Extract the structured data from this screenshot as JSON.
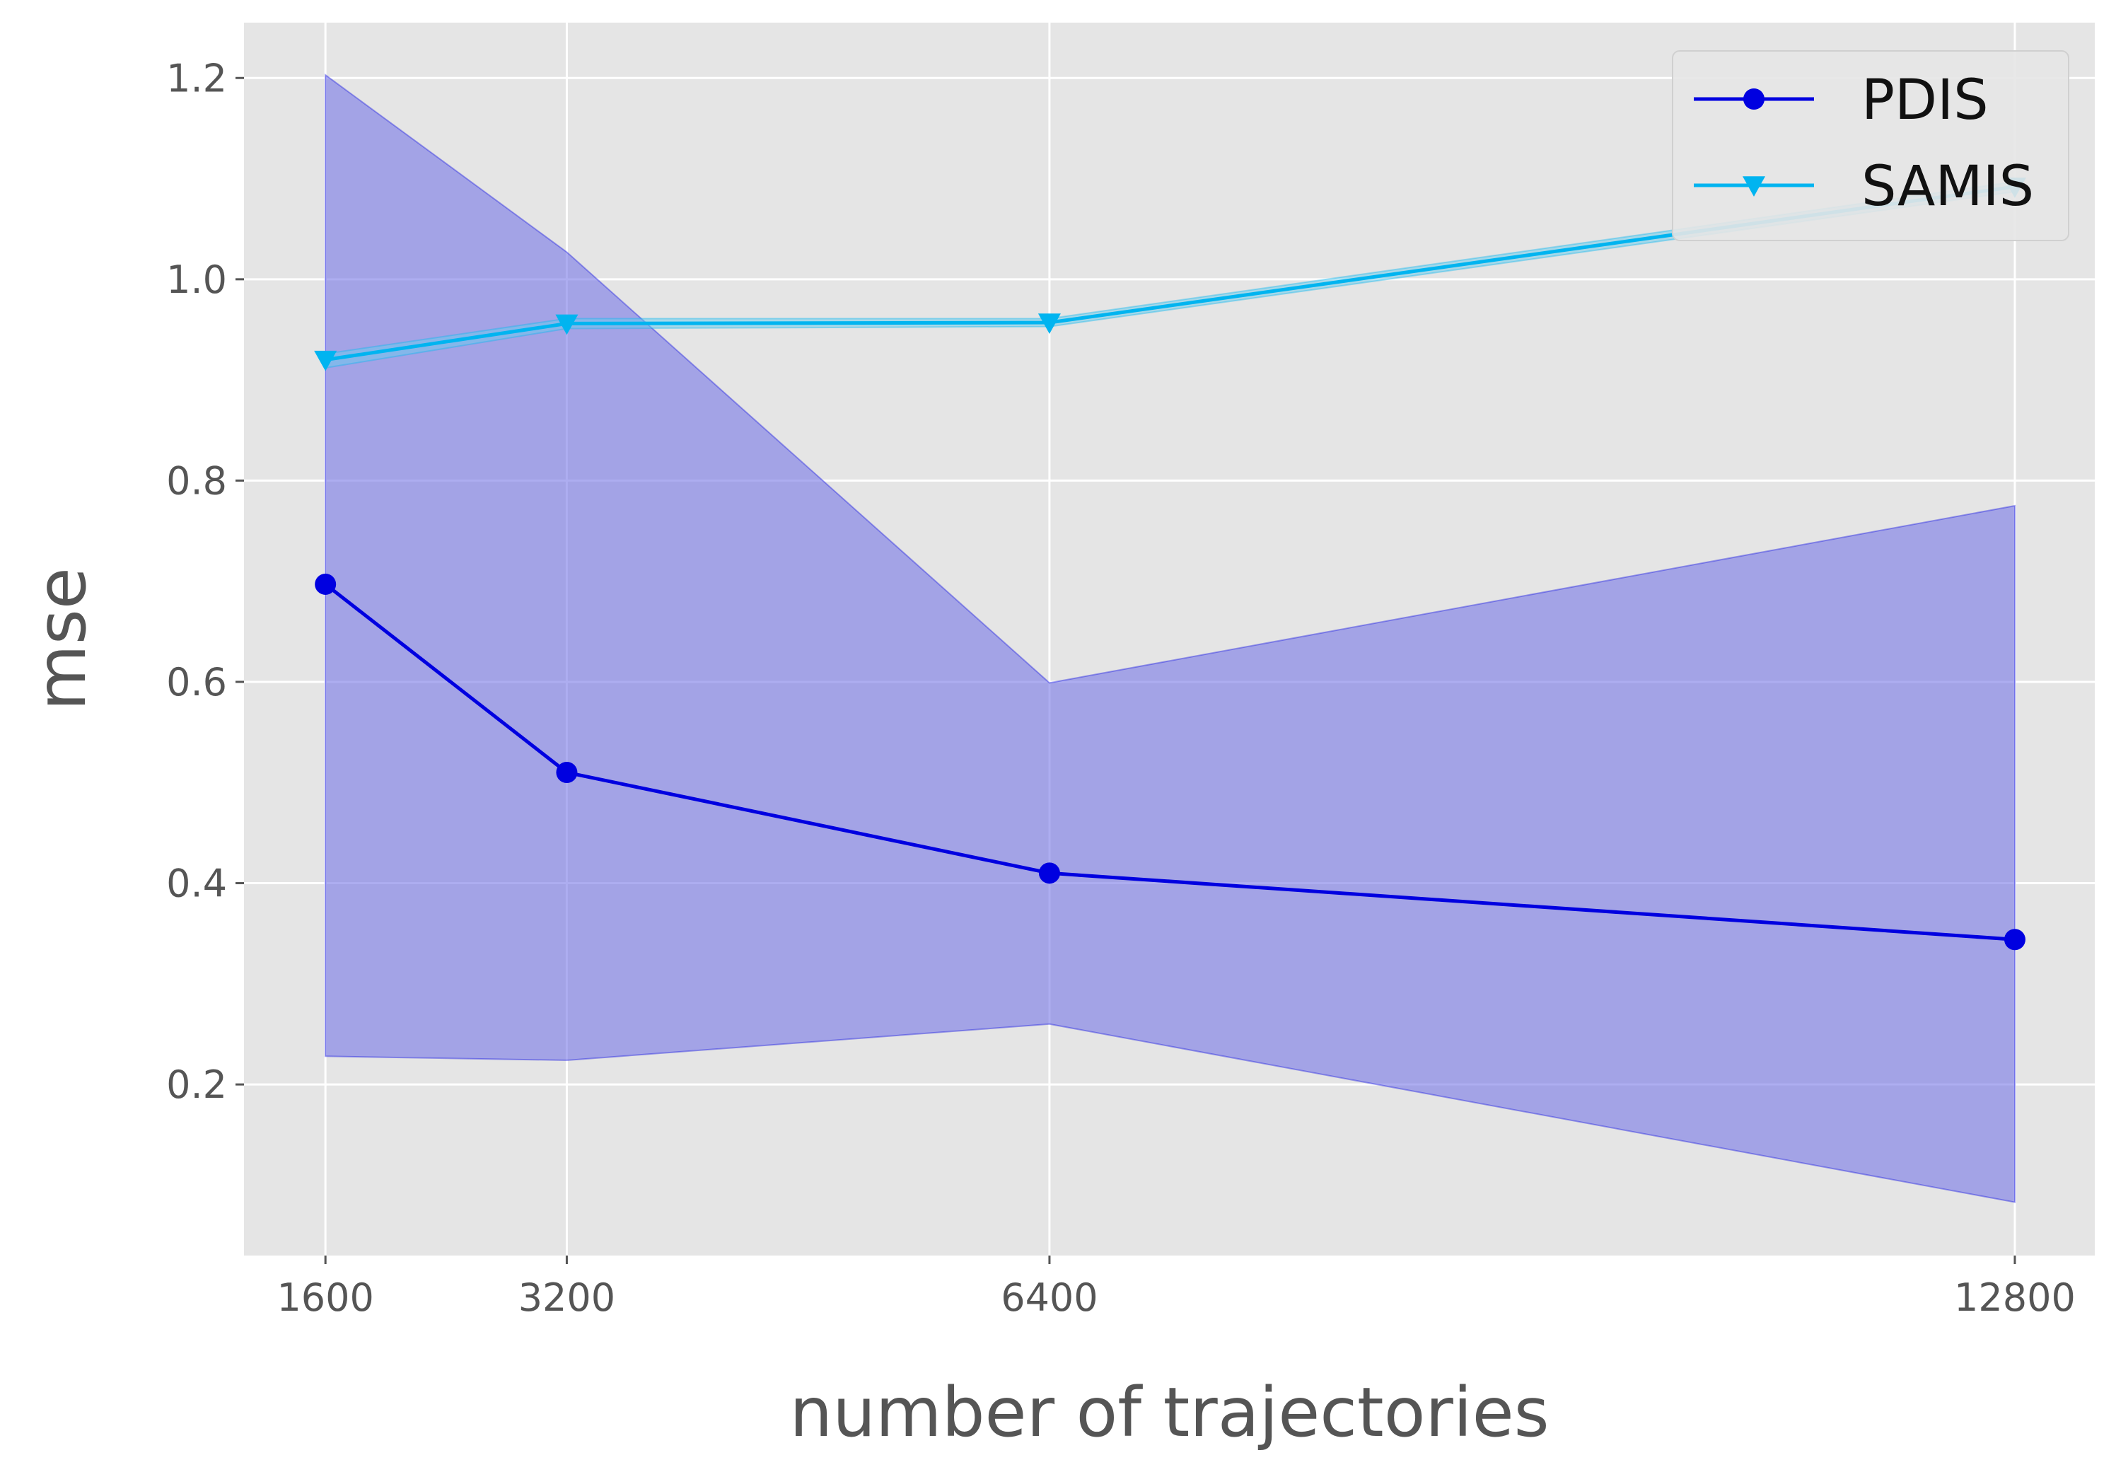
{
  "chart_data": {
    "type": "line",
    "xlabel": "number of trajectories",
    "ylabel": "mse",
    "x": [
      1600,
      3200,
      6400,
      12800
    ],
    "x_tick_labels": [
      "1600",
      "3200",
      "6400",
      "12800"
    ],
    "y_ticks": [
      0.2,
      0.4,
      0.6,
      0.8,
      1.0,
      1.2
    ],
    "y_tick_labels": [
      "0.2",
      "0.4",
      "0.6",
      "0.8",
      "1.0",
      "1.2"
    ],
    "xlim": [
      1060,
      13330
    ],
    "ylim": [
      0.03,
      1.255
    ],
    "grid": true,
    "legend_position": "top-right",
    "series": [
      {
        "name": "PDIS",
        "color": "#0000e0",
        "marker": "circle",
        "values": [
          0.697,
          0.51,
          0.41,
          0.344
        ],
        "band_lower": [
          0.228,
          0.224,
          0.26,
          0.083
        ],
        "band_upper": [
          1.203,
          1.027,
          0.599,
          0.775
        ],
        "band_color": "#7b7be6"
      },
      {
        "name": "SAMIS",
        "color": "#00b4f0",
        "marker": "triangle-down",
        "values": [
          0.92,
          0.956,
          0.957,
          1.092
        ],
        "band_lower": [
          0.912,
          0.951,
          0.953,
          1.087
        ],
        "band_upper": [
          0.926,
          0.961,
          0.961,
          1.097
        ],
        "band_color": "#66ccee"
      }
    ]
  }
}
